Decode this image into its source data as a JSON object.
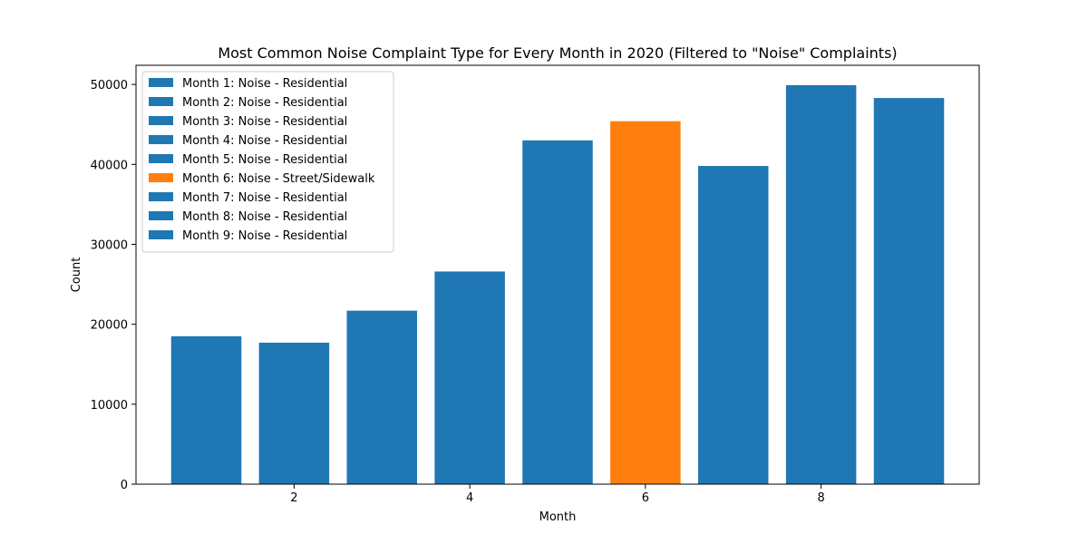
{
  "chart_data": {
    "type": "bar",
    "title": "Most Common Noise Complaint Type for Every Month in 2020 (Filtered to \"Noise\" Complaints)",
    "xlabel": "Month",
    "ylabel": "Count",
    "x": [
      1,
      2,
      3,
      4,
      5,
      6,
      7,
      8,
      9
    ],
    "values": [
      18500,
      17700,
      21700,
      26600,
      43000,
      45400,
      39800,
      49900,
      48300
    ],
    "complaint_types": [
      "Noise - Residential",
      "Noise - Residential",
      "Noise - Residential",
      "Noise - Residential",
      "Noise - Residential",
      "Noise - Street/Sidewalk",
      "Noise - Residential",
      "Noise - Residential",
      "Noise - Residential"
    ],
    "bar_colors": [
      "#1f77b4",
      "#1f77b4",
      "#1f77b4",
      "#1f77b4",
      "#1f77b4",
      "#ff7f0e",
      "#1f77b4",
      "#1f77b4",
      "#1f77b4"
    ],
    "legend": {
      "position": "upper-left",
      "entries": [
        "Month 1: Noise - Residential",
        "Month 2: Noise - Residential",
        "Month 3: Noise - Residential",
        "Month 4: Noise - Residential",
        "Month 5: Noise - Residential",
        "Month 6: Noise - Street/Sidewalk",
        "Month 7: Noise - Residential",
        "Month 8: Noise - Residential",
        "Month 9: Noise - Residential"
      ]
    },
    "xlim": [
      0.2,
      9.8
    ],
    "ylim": [
      0,
      52395
    ],
    "x_ticks": [
      2,
      4,
      6,
      8
    ],
    "y_ticks": [
      0,
      10000,
      20000,
      30000,
      40000,
      50000
    ],
    "grid": false
  }
}
